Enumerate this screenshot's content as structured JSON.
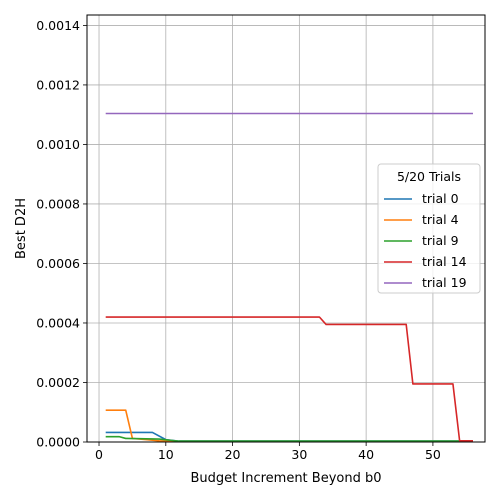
{
  "chart_data": {
    "type": "line",
    "xlabel": "Budget Increment Beyond b0",
    "ylabel": "Best D2H",
    "xlim": [
      -1.8,
      57.8
    ],
    "ylim": [
      0,
      0.001435
    ],
    "xticks": [
      0,
      10,
      20,
      30,
      40,
      50
    ],
    "xtick_labels": [
      "0",
      "10",
      "20",
      "30",
      "40",
      "50"
    ],
    "yticks": [
      0,
      0.0002,
      0.0004,
      0.0006,
      0.0008,
      0.001,
      0.0012,
      0.0014
    ],
    "ytick_labels": [
      "0.0000",
      "0.0002",
      "0.0004",
      "0.0006",
      "0.0008",
      "0.0010",
      "0.0012",
      "0.0014"
    ],
    "grid": true,
    "legend": {
      "title": "5/20 Trials",
      "placement": "center-right"
    },
    "series": [
      {
        "name": "trial 0",
        "color": "#1f77b4",
        "x": [
          1,
          8,
          10,
          12,
          56
        ],
        "y": [
          3.2e-05,
          3.2e-05,
          8e-06,
          3e-06,
          3e-06
        ]
      },
      {
        "name": "trial 4",
        "color": "#ff7f0e",
        "x": [
          1,
          4,
          5,
          7,
          9,
          12,
          56
        ],
        "y": [
          0.000107,
          0.000107,
          1.2e-05,
          8e-06,
          4e-06,
          2e-06,
          2e-06
        ]
      },
      {
        "name": "trial 9",
        "color": "#2ca02c",
        "x": [
          1,
          3,
          4,
          9,
          11,
          12,
          56
        ],
        "y": [
          1.8e-05,
          1.8e-05,
          1.2e-05,
          1e-05,
          5e-06,
          3e-06,
          3e-06
        ]
      },
      {
        "name": "trial 14",
        "color": "#d62728",
        "x": [
          1,
          33,
          34,
          46,
          47,
          53,
          54,
          56
        ],
        "y": [
          0.00042,
          0.00042,
          0.000395,
          0.000395,
          0.000195,
          0.000195,
          4e-06,
          4e-06
        ]
      },
      {
        "name": "trial 19",
        "color": "#9467bd",
        "x": [
          1,
          56
        ],
        "y": [
          0.001104,
          0.001104
        ]
      }
    ]
  }
}
